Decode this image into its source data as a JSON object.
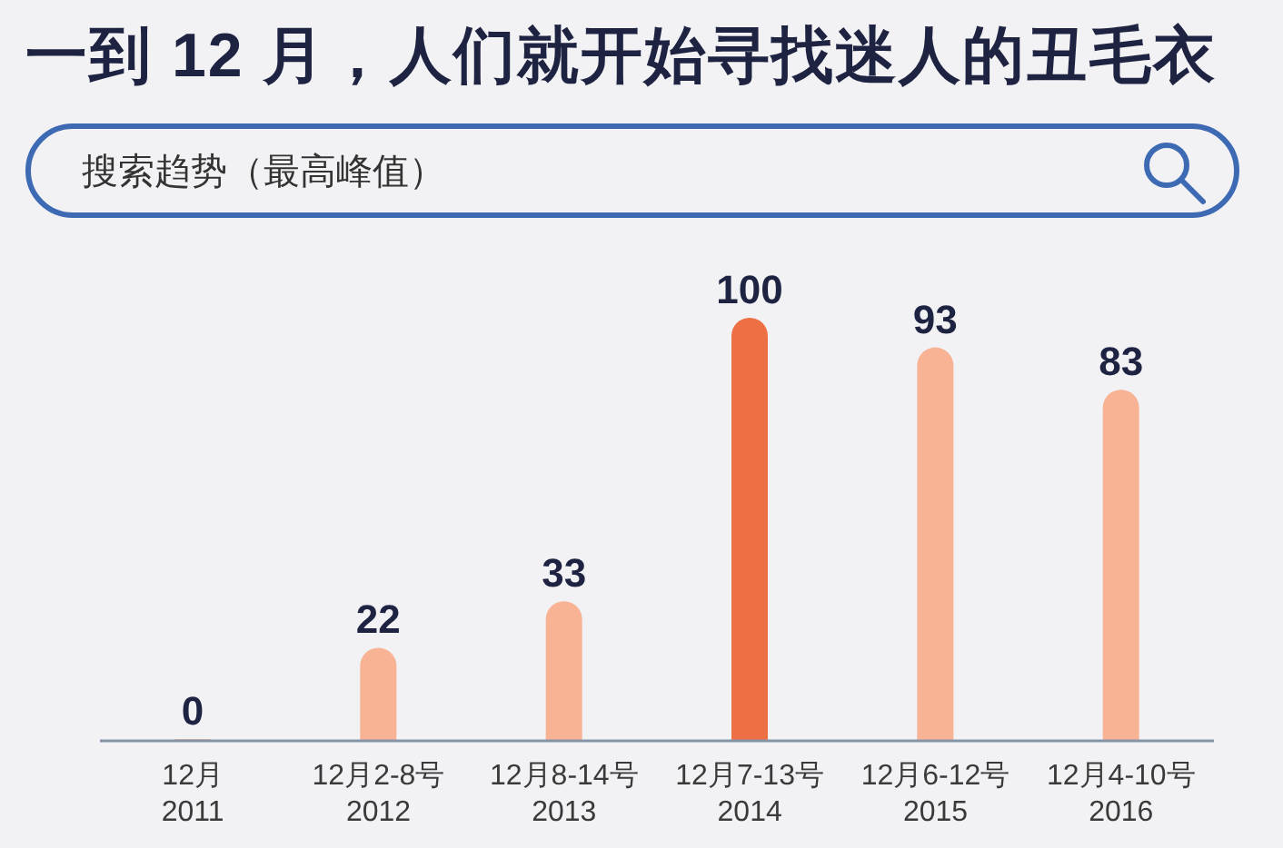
{
  "chart_data": {
    "type": "bar",
    "title": "一到 12 月，人们就开始寻找迷人的丑毛衣",
    "subtitle": "搜索趋势（最高峰值）",
    "categories": [
      "12月\n2011",
      "12月2-8号\n2012",
      "12月8-14号\n2013",
      "12月7-13号\n2014",
      "12月6-12号\n2015",
      "12月4-10号\n2016"
    ],
    "values": [
      0,
      22,
      33,
      100,
      93,
      83
    ],
    "colors": [
      "#f8b294",
      "#f8b294",
      "#f8b294",
      "#ef6f45",
      "#f8b294",
      "#f8b294"
    ],
    "data_labels": true
  }
}
